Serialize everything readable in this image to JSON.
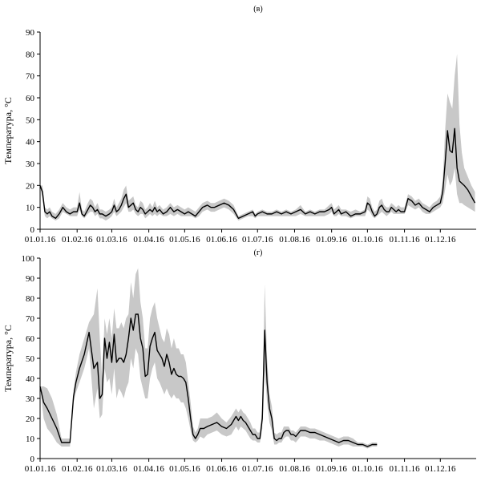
{
  "colors": {
    "line": "#000000",
    "band": "#c8c8c8",
    "axis": "#000000"
  },
  "chart_data": [
    {
      "type": "area",
      "panel_label": "(в)",
      "title": "",
      "xlabel": "",
      "ylabel": "Температура, °С",
      "ylim": [
        0,
        90
      ],
      "yticks": [
        "0",
        "10",
        "20",
        "30",
        "40",
        "50",
        "60",
        "70",
        "80",
        "90"
      ],
      "xlim": [
        0,
        365
      ],
      "xticks": [
        {
          "label": "01.01.16",
          "day": 0
        },
        {
          "label": "01.02.16",
          "day": 31
        },
        {
          "label": "01.03.16",
          "day": 60
        },
        {
          "label": "01.04.16",
          "day": 91
        },
        {
          "label": "01.05.16",
          "day": 121
        },
        {
          "label": "01.06.16",
          "day": 152
        },
        {
          "label": "01.07.16",
          "day": 182
        },
        {
          "label": "01.08.16",
          "day": 213
        },
        {
          "label": "01.09.16",
          "day": 244
        },
        {
          "label": "01.10.16",
          "day": 274
        },
        {
          "label": "01.11.16",
          "day": 305
        },
        {
          "label": "01.12.16",
          "day": 335
        }
      ],
      "grid": false,
      "series": [
        {
          "x": [
            0,
            2,
            4,
            6,
            8,
            10,
            13,
            16,
            19,
            22,
            25,
            28,
            31,
            33,
            35,
            37,
            40,
            42,
            44,
            46,
            48,
            50,
            52,
            55,
            58,
            60,
            62,
            64,
            66,
            68,
            70,
            72,
            74,
            76,
            78,
            80,
            82,
            84,
            86,
            88,
            90,
            92,
            94,
            96,
            98,
            100,
            103,
            106,
            109,
            112,
            115,
            118,
            121,
            124,
            127,
            130,
            133,
            136,
            140,
            143,
            146,
            150,
            154,
            158,
            162,
            166,
            170,
            174,
            178,
            180,
            182,
            186,
            190,
            194,
            198,
            202,
            206,
            210,
            214,
            218,
            222,
            226,
            230,
            234,
            238,
            242,
            244,
            246,
            248,
            250,
            252,
            256,
            260,
            264,
            268,
            272,
            274,
            276,
            278,
            280,
            282,
            284,
            286,
            288,
            290,
            292,
            294,
            296,
            298,
            300,
            302,
            305,
            308,
            311,
            314,
            317,
            320,
            323,
            326,
            329,
            332,
            335,
            337,
            339,
            341,
            343,
            345,
            347,
            349,
            351,
            353,
            355,
            358,
            361,
            364
          ],
          "y": [
            20,
            17,
            8,
            7,
            8,
            6,
            5,
            7,
            10,
            8,
            7,
            8,
            8,
            12,
            7,
            6,
            9,
            11,
            10,
            8,
            9,
            7,
            7,
            6,
            7,
            8,
            11,
            8,
            9,
            11,
            14,
            16,
            10,
            11,
            12,
            9,
            8,
            10,
            9,
            7,
            8,
            9,
            8,
            10,
            8,
            9,
            7,
            8,
            10,
            8,
            9,
            8,
            7,
            8,
            7,
            6,
            8,
            10,
            11,
            10,
            10,
            11,
            12,
            11,
            9,
            5,
            6,
            7,
            8,
            6,
            7,
            8,
            7,
            7,
            8,
            7,
            8,
            7,
            8,
            9,
            7,
            8,
            7,
            8,
            8,
            9,
            10,
            7,
            8,
            9,
            7,
            8,
            6,
            7,
            7,
            8,
            12,
            11,
            8,
            6,
            7,
            10,
            11,
            9,
            8,
            8,
            10,
            9,
            8,
            9,
            8,
            8,
            14,
            13,
            11,
            12,
            10,
            9,
            8,
            10,
            11,
            12,
            17,
            30,
            45,
            36,
            35,
            46,
            28,
            22,
            21,
            20,
            18,
            15,
            12
          ],
          "low": [
            20,
            14,
            6,
            5,
            6,
            5,
            4,
            5,
            8,
            7,
            6,
            6,
            6,
            9,
            6,
            5,
            7,
            8,
            8,
            6,
            7,
            5,
            5,
            4,
            5,
            6,
            8,
            6,
            7,
            8,
            10,
            12,
            8,
            8,
            9,
            7,
            6,
            7,
            7,
            5,
            6,
            7,
            6,
            7,
            6,
            7,
            6,
            6,
            7,
            6,
            7,
            6,
            6,
            6,
            6,
            5,
            6,
            8,
            9,
            8,
            8,
            9,
            10,
            9,
            7,
            4,
            5,
            6,
            6,
            5,
            6,
            6,
            6,
            6,
            6,
            6,
            6,
            6,
            6,
            7,
            6,
            6,
            6,
            6,
            6,
            7,
            8,
            6,
            6,
            7,
            6,
            6,
            5,
            6,
            6,
            6,
            9,
            8,
            6,
            5,
            6,
            7,
            8,
            7,
            6,
            7,
            8,
            7,
            7,
            7,
            7,
            7,
            11,
            10,
            9,
            10,
            8,
            7,
            7,
            8,
            9,
            10,
            12,
            18,
            25,
            20,
            22,
            28,
            16,
            12,
            12,
            11,
            10,
            9,
            8
          ],
          "high": [
            20,
            20,
            10,
            9,
            10,
            8,
            7,
            9,
            12,
            10,
            9,
            10,
            10,
            17,
            9,
            8,
            12,
            14,
            13,
            10,
            12,
            9,
            9,
            8,
            9,
            10,
            14,
            10,
            12,
            14,
            18,
            20,
            13,
            14,
            15,
            11,
            10,
            13,
            12,
            9,
            10,
            12,
            10,
            13,
            10,
            11,
            9,
            10,
            12,
            10,
            11,
            10,
            9,
            10,
            9,
            8,
            10,
            12,
            13,
            12,
            12,
            13,
            14,
            13,
            11,
            6,
            7,
            8,
            9,
            7,
            8,
            9,
            8,
            8,
            9,
            8,
            9,
            8,
            9,
            11,
            8,
            9,
            8,
            9,
            9,
            11,
            12,
            9,
            10,
            11,
            9,
            9,
            8,
            9,
            8,
            9,
            15,
            14,
            10,
            8,
            9,
            13,
            14,
            11,
            10,
            10,
            12,
            11,
            10,
            11,
            10,
            10,
            16,
            15,
            13,
            14,
            12,
            11,
            10,
            12,
            13,
            15,
            22,
            45,
            62,
            58,
            55,
            70,
            80,
            48,
            35,
            28,
            24,
            20,
            17
          ]
        }
      ]
    },
    {
      "type": "area",
      "panel_label": "(г)",
      "title": "",
      "xlabel": "",
      "ylabel": "Температура, °С",
      "ylim": [
        0,
        100
      ],
      "yticks": [
        "0",
        "10",
        "20",
        "30",
        "40",
        "50",
        "60",
        "70",
        "80",
        "90",
        "100"
      ],
      "xlim": [
        0,
        365
      ],
      "xticks": [
        {
          "label": "01.01.16",
          "day": 0
        },
        {
          "label": "01.02.16",
          "day": 31
        },
        {
          "label": "01.03.16",
          "day": 60
        },
        {
          "label": "01.04.16",
          "day": 91
        },
        {
          "label": "01.05.16",
          "day": 121
        },
        {
          "label": "01.06.16",
          "day": 152
        },
        {
          "label": "01.07.16",
          "day": 182
        },
        {
          "label": "01.08.16",
          "day": 213
        },
        {
          "label": "01.09.16",
          "day": 244
        },
        {
          "label": "01.10.16",
          "day": 274
        },
        {
          "label": "01.11.16",
          "day": 305
        },
        {
          "label": "01.12.16",
          "day": 335
        }
      ],
      "grid": false,
      "series": [
        {
          "x": [
            0,
            3,
            6,
            10,
            14,
            18,
            22,
            25,
            28,
            30,
            33,
            37,
            41,
            45,
            48,
            50,
            52,
            54,
            56,
            58,
            60,
            62,
            64,
            66,
            68,
            70,
            72,
            74,
            76,
            78,
            80,
            82,
            84,
            86,
            88,
            90,
            92,
            94,
            96,
            98,
            100,
            102,
            104,
            106,
            108,
            110,
            112,
            114,
            116,
            118,
            120,
            122,
            124,
            126,
            128,
            130,
            132,
            134,
            137,
            140,
            144,
            148,
            152,
            156,
            160,
            164,
            166,
            168,
            170,
            172,
            174,
            176,
            178,
            180,
            182,
            184,
            186,
            188,
            190,
            192,
            194,
            196,
            198,
            200,
            202,
            204,
            206,
            208,
            210,
            212,
            214,
            218,
            222,
            226,
            230,
            234,
            238,
            242,
            246,
            250,
            254,
            258,
            262,
            266,
            270,
            274,
            278,
            282
          ],
          "y": [
            36,
            28,
            25,
            20,
            15,
            8,
            8,
            8,
            31,
            38,
            45,
            52,
            63,
            45,
            48,
            30,
            32,
            60,
            50,
            58,
            48,
            62,
            48,
            50,
            50,
            48,
            52,
            60,
            70,
            64,
            72,
            72,
            60,
            55,
            41,
            42,
            56,
            60,
            63,
            54,
            52,
            50,
            46,
            52,
            48,
            42,
            45,
            42,
            41,
            41,
            40,
            38,
            30,
            20,
            12,
            10,
            12,
            15,
            15,
            16,
            17,
            18,
            16,
            15,
            17,
            21,
            19,
            21,
            19,
            18,
            16,
            14,
            12,
            12,
            10,
            10,
            20,
            64,
            38,
            25,
            20,
            10,
            9,
            10,
            10,
            13,
            14,
            14,
            12,
            12,
            11,
            14,
            14,
            13,
            13,
            12,
            11,
            10,
            9,
            8,
            9,
            9,
            8,
            7,
            7,
            6,
            7,
            7
          ],
          "low": [
            36,
            20,
            15,
            12,
            8,
            6,
            6,
            6,
            28,
            33,
            38,
            45,
            55,
            25,
            35,
            20,
            22,
            45,
            38,
            40,
            32,
            45,
            30,
            35,
            33,
            30,
            35,
            38,
            50,
            45,
            55,
            52,
            40,
            35,
            30,
            30,
            40,
            45,
            48,
            40,
            38,
            35,
            32,
            35,
            32,
            30,
            32,
            30,
            30,
            28,
            28,
            25,
            20,
            14,
            9,
            8,
            9,
            11,
            10,
            12,
            13,
            14,
            12,
            11,
            12,
            16,
            14,
            16,
            15,
            14,
            12,
            10,
            9,
            9,
            8,
            8,
            15,
            44,
            28,
            18,
            14,
            7,
            7,
            8,
            8,
            10,
            11,
            11,
            9,
            9,
            8,
            11,
            11,
            10,
            10,
            9,
            9,
            8,
            7,
            6,
            7,
            7,
            6,
            6,
            6,
            5,
            6,
            6
          ],
          "high": [
            36,
            36,
            35,
            30,
            22,
            10,
            10,
            10,
            34,
            43,
            52,
            60,
            68,
            72,
            85,
            60,
            40,
            70,
            62,
            70,
            60,
            75,
            65,
            65,
            68,
            65,
            70,
            72,
            88,
            80,
            92,
            95,
            78,
            70,
            55,
            55,
            70,
            75,
            78,
            70,
            65,
            60,
            58,
            65,
            62,
            55,
            60,
            55,
            55,
            52,
            52,
            48,
            38,
            28,
            16,
            13,
            15,
            20,
            20,
            20,
            21,
            23,
            20,
            18,
            21,
            25,
            23,
            25,
            23,
            22,
            20,
            18,
            15,
            15,
            13,
            13,
            25,
            87,
            50,
            32,
            26,
            13,
            12,
            13,
            13,
            16,
            16,
            16,
            14,
            14,
            13,
            16,
            16,
            15,
            15,
            14,
            13,
            12,
            11,
            10,
            11,
            11,
            10,
            8,
            8,
            7,
            8,
            8
          ]
        }
      ]
    }
  ]
}
